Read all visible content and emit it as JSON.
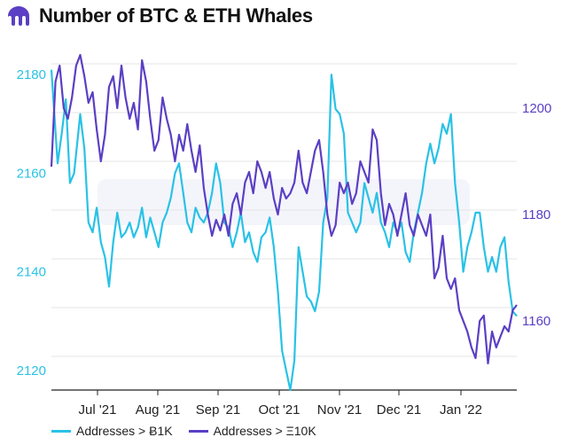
{
  "header": {
    "title": "Number of BTC & ETH Whales",
    "logo_icon": "kraken-logo-icon"
  },
  "colors": {
    "btc": "#29c2e6",
    "eth": "#5b3fc4",
    "grid": "#e6e6e6"
  },
  "chart_data": {
    "type": "line",
    "title": "Number of BTC & ETH Whales",
    "x_ticks": [
      "Jul '21",
      "Aug '21",
      "Sep '21",
      "Oct '21",
      "Nov '21",
      "Dec '21",
      "Jan '22"
    ],
    "y_left": {
      "ticks": [
        2120,
        2140,
        2160,
        2180
      ],
      "range": [
        2116,
        2184
      ]
    },
    "y_right": {
      "ticks": [
        1160,
        1180,
        1200
      ],
      "range": [
        1147,
        1210
      ]
    },
    "x_range_days": [
      0,
      226
    ],
    "grid": true,
    "legend_position": "bottom",
    "series": [
      {
        "name": "Addresses > Ƀ1K",
        "axis": "left",
        "points": [
          [
            0,
            2181
          ],
          [
            3,
            2162
          ],
          [
            5,
            2168
          ],
          [
            7,
            2175
          ],
          [
            9,
            2158
          ],
          [
            11,
            2160
          ],
          [
            14,
            2172
          ],
          [
            16,
            2165
          ],
          [
            18,
            2150
          ],
          [
            20,
            2148
          ],
          [
            22,
            2153
          ],
          [
            24,
            2146
          ],
          [
            26,
            2143
          ],
          [
            28,
            2137
          ],
          [
            30,
            2146
          ],
          [
            32,
            2152
          ],
          [
            34,
            2147
          ],
          [
            36,
            2148
          ],
          [
            38,
            2150
          ],
          [
            40,
            2147
          ],
          [
            42,
            2149
          ],
          [
            44,
            2153
          ],
          [
            46,
            2147
          ],
          [
            48,
            2151
          ],
          [
            50,
            2148
          ],
          [
            52,
            2145
          ],
          [
            54,
            2150
          ],
          [
            56,
            2152
          ],
          [
            58,
            2155
          ],
          [
            60,
            2160
          ],
          [
            62,
            2162
          ],
          [
            64,
            2156
          ],
          [
            66,
            2150
          ],
          [
            68,
            2148
          ],
          [
            70,
            2153
          ],
          [
            72,
            2151
          ],
          [
            74,
            2150
          ],
          [
            76,
            2152
          ],
          [
            78,
            2156
          ],
          [
            80,
            2162
          ],
          [
            82,
            2158
          ],
          [
            84,
            2150
          ],
          [
            86,
            2149
          ],
          [
            88,
            2145
          ],
          [
            90,
            2148
          ],
          [
            92,
            2152
          ],
          [
            94,
            2146
          ],
          [
            96,
            2148
          ],
          [
            98,
            2144
          ],
          [
            100,
            2142
          ],
          [
            102,
            2147
          ],
          [
            104,
            2148
          ],
          [
            106,
            2151
          ],
          [
            108,
            2145
          ],
          [
            110,
            2136
          ],
          [
            112,
            2124
          ],
          [
            114,
            2120
          ],
          [
            116,
            2116
          ],
          [
            118,
            2122
          ],
          [
            120,
            2145
          ],
          [
            122,
            2140
          ],
          [
            124,
            2135
          ],
          [
            126,
            2134
          ],
          [
            128,
            2132
          ],
          [
            130,
            2136
          ],
          [
            132,
            2150
          ],
          [
            134,
            2155
          ],
          [
            136,
            2180
          ],
          [
            138,
            2173
          ],
          [
            140,
            2172
          ],
          [
            142,
            2168
          ],
          [
            144,
            2152
          ],
          [
            146,
            2150
          ],
          [
            148,
            2148
          ],
          [
            150,
            2150
          ],
          [
            152,
            2158
          ],
          [
            154,
            2155
          ],
          [
            156,
            2152
          ],
          [
            158,
            2156
          ],
          [
            160,
            2150
          ],
          [
            162,
            2148
          ],
          [
            164,
            2145
          ],
          [
            166,
            2150
          ],
          [
            168,
            2148
          ],
          [
            170,
            2150
          ],
          [
            172,
            2144
          ],
          [
            174,
            2142
          ],
          [
            176,
            2148
          ],
          [
            178,
            2152
          ],
          [
            180,
            2156
          ],
          [
            182,
            2162
          ],
          [
            184,
            2166
          ],
          [
            186,
            2162
          ],
          [
            188,
            2165
          ],
          [
            190,
            2170
          ],
          [
            192,
            2168
          ],
          [
            194,
            2172
          ],
          [
            196,
            2158
          ],
          [
            198,
            2150
          ],
          [
            200,
            2140
          ],
          [
            202,
            2145
          ],
          [
            204,
            2148
          ],
          [
            206,
            2152
          ],
          [
            208,
            2152
          ],
          [
            210,
            2145
          ],
          [
            212,
            2140
          ],
          [
            214,
            2143
          ],
          [
            216,
            2140
          ],
          [
            218,
            2145
          ],
          [
            220,
            2147
          ],
          [
            222,
            2138
          ],
          [
            224,
            2132
          ],
          [
            226,
            2131
          ]
        ]
      },
      {
        "name": "Addresses > Ξ10K",
        "axis": "right",
        "points": [
          [
            0,
            1189
          ],
          [
            2,
            1205
          ],
          [
            4,
            1208
          ],
          [
            6,
            1200
          ],
          [
            8,
            1198
          ],
          [
            10,
            1202
          ],
          [
            12,
            1208
          ],
          [
            14,
            1210
          ],
          [
            16,
            1206
          ],
          [
            18,
            1201
          ],
          [
            20,
            1203
          ],
          [
            22,
            1196
          ],
          [
            24,
            1190
          ],
          [
            26,
            1195
          ],
          [
            28,
            1204
          ],
          [
            30,
            1206
          ],
          [
            32,
            1200
          ],
          [
            34,
            1208
          ],
          [
            36,
            1202
          ],
          [
            38,
            1198
          ],
          [
            40,
            1201
          ],
          [
            42,
            1196
          ],
          [
            44,
            1209
          ],
          [
            46,
            1205
          ],
          [
            48,
            1198
          ],
          [
            50,
            1192
          ],
          [
            52,
            1194
          ],
          [
            54,
            1202
          ],
          [
            56,
            1198
          ],
          [
            58,
            1195
          ],
          [
            60,
            1190
          ],
          [
            62,
            1195
          ],
          [
            64,
            1192
          ],
          [
            66,
            1197
          ],
          [
            68,
            1192
          ],
          [
            70,
            1188
          ],
          [
            72,
            1193
          ],
          [
            74,
            1185
          ],
          [
            76,
            1180
          ],
          [
            78,
            1176
          ],
          [
            80,
            1179
          ],
          [
            82,
            1177
          ],
          [
            84,
            1180
          ],
          [
            86,
            1176
          ],
          [
            88,
            1182
          ],
          [
            90,
            1184
          ],
          [
            92,
            1180
          ],
          [
            94,
            1186
          ],
          [
            96,
            1188
          ],
          [
            98,
            1184
          ],
          [
            100,
            1190
          ],
          [
            102,
            1188
          ],
          [
            104,
            1185
          ],
          [
            106,
            1188
          ],
          [
            108,
            1183
          ],
          [
            110,
            1180
          ],
          [
            112,
            1185
          ],
          [
            114,
            1183
          ],
          [
            116,
            1184
          ],
          [
            118,
            1186
          ],
          [
            120,
            1192
          ],
          [
            122,
            1186
          ],
          [
            124,
            1184
          ],
          [
            126,
            1188
          ],
          [
            128,
            1192
          ],
          [
            130,
            1194
          ],
          [
            132,
            1188
          ],
          [
            134,
            1180
          ],
          [
            136,
            1176
          ],
          [
            138,
            1178
          ],
          [
            140,
            1186
          ],
          [
            142,
            1184
          ],
          [
            144,
            1186
          ],
          [
            146,
            1182
          ],
          [
            148,
            1184
          ],
          [
            150,
            1190
          ],
          [
            152,
            1188
          ],
          [
            154,
            1186
          ],
          [
            156,
            1196
          ],
          [
            158,
            1194
          ],
          [
            160,
            1184
          ],
          [
            162,
            1178
          ],
          [
            164,
            1182
          ],
          [
            166,
            1180
          ],
          [
            168,
            1176
          ],
          [
            170,
            1180
          ],
          [
            172,
            1184
          ],
          [
            174,
            1178
          ],
          [
            176,
            1176
          ],
          [
            178,
            1180
          ],
          [
            180,
            1178
          ],
          [
            182,
            1176
          ],
          [
            184,
            1180
          ],
          [
            186,
            1168
          ],
          [
            188,
            1170
          ],
          [
            190,
            1176
          ],
          [
            192,
            1168
          ],
          [
            194,
            1166
          ],
          [
            196,
            1168
          ],
          [
            198,
            1162
          ],
          [
            200,
            1160
          ],
          [
            202,
            1158
          ],
          [
            204,
            1155
          ],
          [
            206,
            1153
          ],
          [
            208,
            1160
          ],
          [
            210,
            1161
          ],
          [
            212,
            1152
          ],
          [
            214,
            1158
          ],
          [
            216,
            1155
          ],
          [
            218,
            1157
          ],
          [
            220,
            1159
          ],
          [
            222,
            1158
          ],
          [
            224,
            1162
          ],
          [
            226,
            1163
          ]
        ]
      }
    ]
  },
  "legend": {
    "btc_label": "Addresses > Ƀ1K",
    "eth_label": "Addresses > Ξ10K"
  }
}
